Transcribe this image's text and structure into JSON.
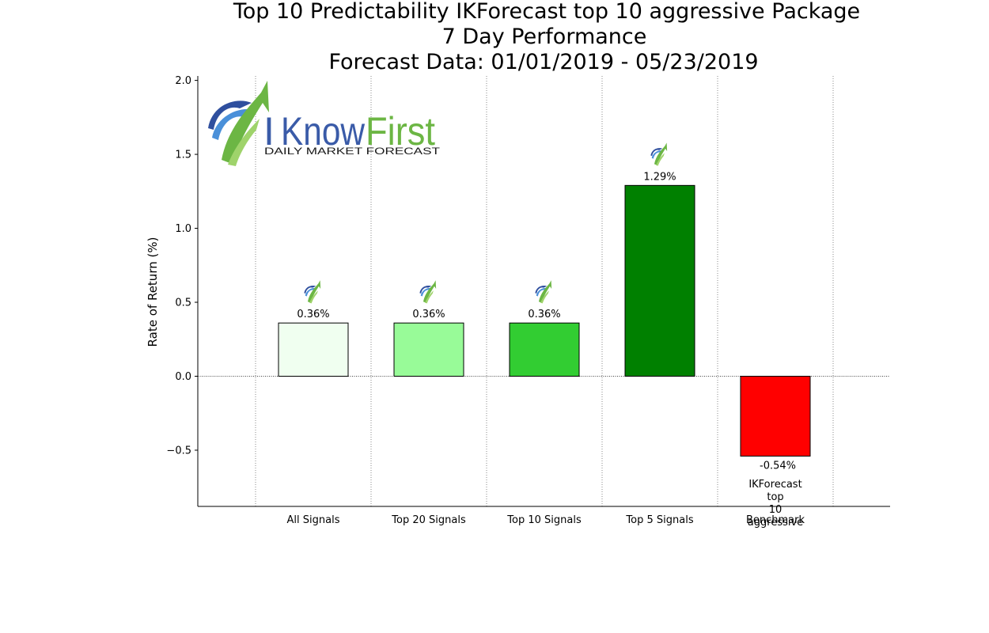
{
  "title_lines": [
    "Top 10 Predictability IKForecast top 10 aggressive Package",
    "7 Day Performance",
    "Forecast Data: 01/01/2019 - 05/23/2019"
  ],
  "logo": {
    "brand_i": "I",
    "brand_know": "Know",
    "brand_first": "First",
    "tagline": "DAILY MARKET FORECAST",
    "colors": {
      "blue": "#3a5ba8",
      "green": "#6cb644"
    }
  },
  "chart_data": {
    "type": "bar",
    "categories": [
      "All Signals",
      "Top 20 Signals",
      "Top 10 Signals",
      "Top 5 Signals",
      "Benchmark"
    ],
    "values": [
      0.36,
      0.36,
      0.36,
      1.29,
      -0.54
    ],
    "value_labels": [
      "0.36%",
      "0.36%",
      "0.36%",
      "1.29%",
      "-0.54%"
    ],
    "colors": [
      "#f0fff0",
      "#98fb98",
      "#32cd32",
      "#008000",
      "#ff0000"
    ],
    "benchmark_note": [
      "IKForecast",
      "top",
      "10",
      "aggressive"
    ],
    "ylabel": "Rate of Return (%)",
    "xlabel": "",
    "ylim": [
      -0.88,
      2.03
    ],
    "yticks": [
      -0.5,
      0.0,
      0.5,
      1.0,
      1.5,
      2.0
    ],
    "ytick_labels": [
      "−0.5",
      "0.0",
      "0.5",
      "1.0",
      "1.5",
      "2.0"
    ],
    "grid": "vertical dotted",
    "legend": "none"
  }
}
